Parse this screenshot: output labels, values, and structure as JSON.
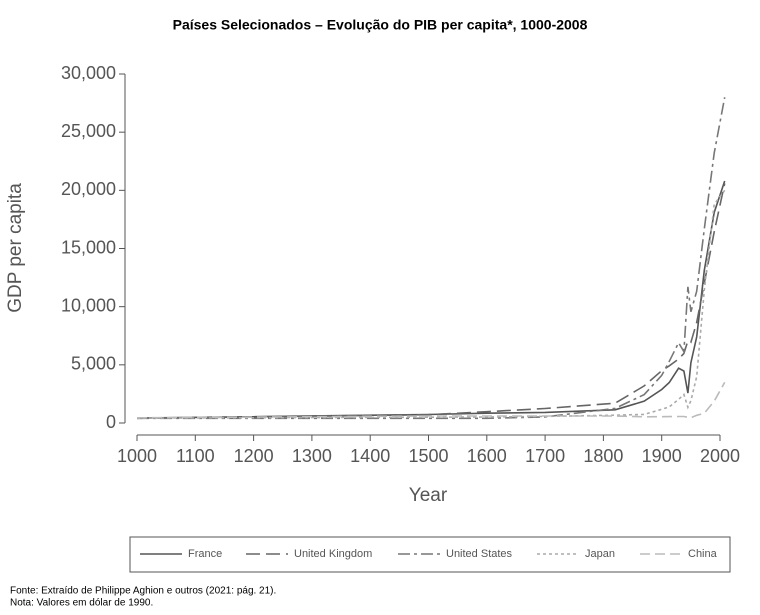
{
  "chart_data": {
    "type": "line",
    "title": "Países Selecionados – Evolução do PIB per capita*, 1000-2008",
    "x_label": "Year",
    "y_label": "GDP per capita",
    "x": [
      1000,
      1500,
      1600,
      1700,
      1820,
      1870,
      1900,
      1913,
      1929,
      1938,
      1945,
      1950,
      1960,
      1973,
      1990,
      2008
    ],
    "series": [
      {
        "name": "France",
        "color": "#555555",
        "dash": "none",
        "values": [
          425,
          727,
          841,
          910,
          1135,
          1876,
          2876,
          3485,
          4710,
          4466,
          2573,
          5186,
          7398,
          13114,
          18093,
          20800
        ]
      },
      {
        "name": "United Kingdom",
        "color": "#666666",
        "dash": "14 6",
        "values": [
          400,
          714,
          974,
          1250,
          1706,
          3190,
          4492,
          4921,
          5503,
          5983,
          7056,
          6939,
          8645,
          12025,
          16430,
          20600
        ]
      },
      {
        "name": "United States",
        "color": "#777777",
        "dash": "12 4 3 4",
        "values": [
          400,
          400,
          400,
          527,
          1257,
          2445,
          4091,
          5301,
          6899,
          6126,
          11709,
          9561,
          11328,
          16689,
          23201,
          28000
        ]
      },
      {
        "name": "Japan",
        "color": "#aaaaaa",
        "dash": "3 3",
        "values": [
          425,
          500,
          520,
          570,
          669,
          737,
          1180,
          1387,
          2026,
          2449,
          1346,
          1921,
          3986,
          11434,
          18789,
          20000
        ]
      },
      {
        "name": "China",
        "color": "#bbbbbb",
        "dash": "10 5",
        "values": [
          450,
          600,
          600,
          600,
          600,
          530,
          545,
          552,
          562,
          562,
          500,
          448,
          662,
          838,
          1871,
          3500
        ]
      }
    ],
    "xlim": [
      1000,
      2000
    ],
    "xticks": [
      1000,
      1100,
      1200,
      1300,
      1400,
      1500,
      1600,
      1700,
      1800,
      1900,
      2000
    ],
    "ylim": [
      0,
      30000
    ],
    "yticks": [
      0,
      {
        "value": 5000,
        "label": "5,000"
      },
      {
        "value": 10000,
        "label": "10,000"
      },
      {
        "value": 15000,
        "label": "15,000"
      },
      {
        "value": 20000,
        "label": "20,000"
      },
      {
        "value": 25000,
        "label": "25,000"
      },
      {
        "value": 30000,
        "label": "30,000"
      }
    ],
    "legend": "bottom"
  },
  "notes": [
    "Fonte: Extraído de Philippe Aghion e outros (2021: pág. 21).",
    "Nota: Valores em dólar de 1990."
  ]
}
